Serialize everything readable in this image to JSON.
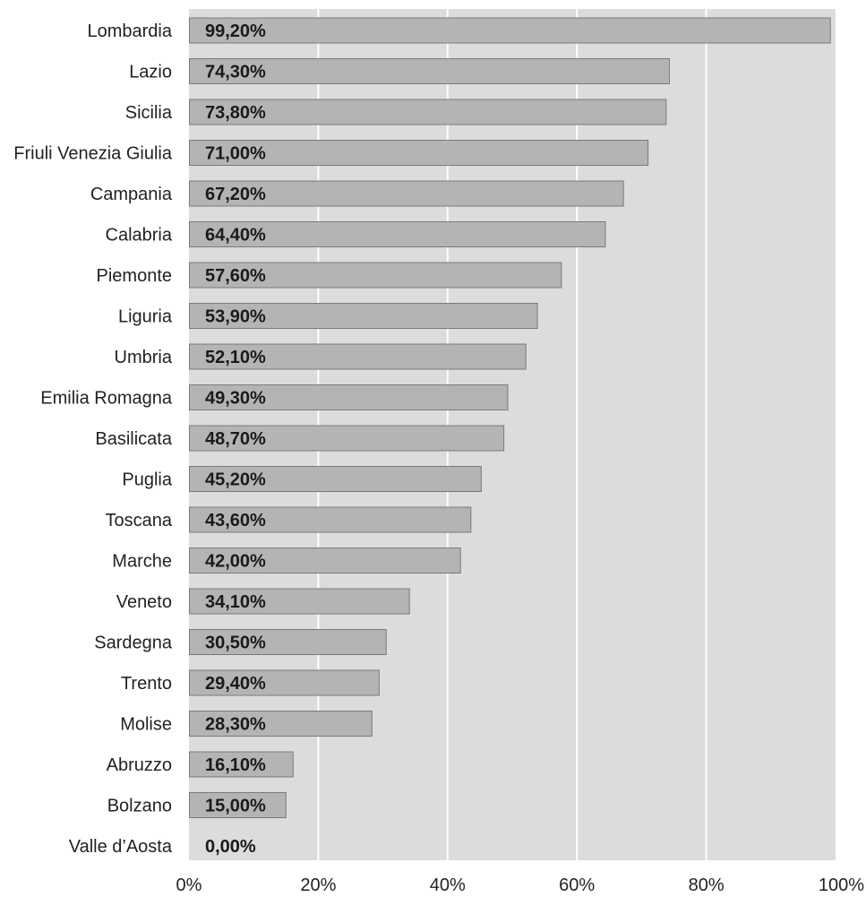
{
  "chart_data": {
    "type": "bar",
    "orientation": "horizontal",
    "categories": [
      "Lombardia",
      "Lazio",
      "Sicilia",
      "Friuli Venezia Giulia",
      "Campania",
      "Calabria",
      "Piemonte",
      "Liguria",
      "Umbria",
      "Emilia Romagna",
      "Basilicata",
      "Puglia",
      "Toscana",
      "Marche",
      "Veneto",
      "Sardegna",
      "Trento",
      "Molise",
      "Abruzzo",
      "Bolzano",
      "Valle d’Aosta"
    ],
    "values": [
      99.2,
      74.3,
      73.8,
      71.0,
      67.2,
      64.4,
      57.6,
      53.9,
      52.1,
      49.3,
      48.7,
      45.2,
      43.6,
      42.0,
      34.1,
      30.5,
      29.4,
      28.3,
      16.1,
      15.0,
      0.0
    ],
    "value_labels": [
      "99,20%",
      "74,30%",
      "73,80%",
      "71,00%",
      "67,20%",
      "64,40%",
      "57,60%",
      "53,90%",
      "52,10%",
      "49,30%",
      "48,70%",
      "45,20%",
      "43,60%",
      "42,00%",
      "34,10%",
      "30,50%",
      "29,40%",
      "28,30%",
      "16,10%",
      "15,00%",
      "0,00%"
    ],
    "x_ticks": [
      "0%",
      "20%",
      "40%",
      "60%",
      "80%",
      "100%"
    ],
    "xlim": [
      0,
      100
    ],
    "grid": "vertical",
    "legend": "none",
    "colors": {
      "plot_bg": "#dcdcdc",
      "bar": "#b4b4b4",
      "bar_border": "#7a7a7a",
      "grid": "#ffffff"
    }
  }
}
